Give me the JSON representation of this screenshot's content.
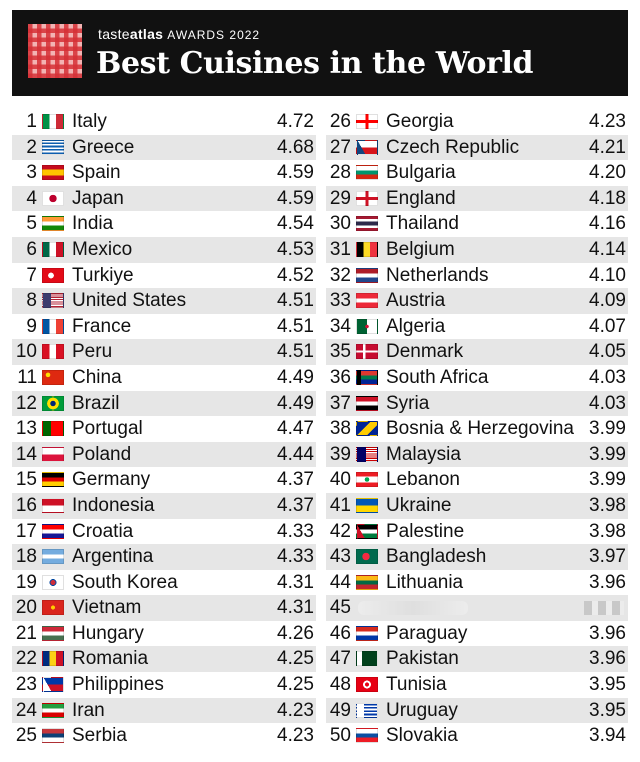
{
  "header": {
    "brand_part1": "taste",
    "brand_part2": "atlas",
    "brand_part3": "AWARDS 2022",
    "title": "Best Cuisines in the World"
  },
  "left_rows": [
    {
      "rank": "1",
      "name": "Italy",
      "score": "4.72",
      "flag": "linear-gradient(90deg,#009246 33%,#fff 33% 66%,#ce2b37 66%)"
    },
    {
      "rank": "2",
      "name": "Greece",
      "score": "4.68",
      "flag": "repeating-linear-gradient(0deg,#0d5eaf 0 1.67px,#fff 1.67px 3.33px)"
    },
    {
      "rank": "3",
      "name": "Spain",
      "score": "4.59",
      "flag": "linear-gradient(0deg,#c60b1e 25%,#ffc400 25% 75%,#c60b1e 75%)"
    },
    {
      "rank": "4",
      "name": "Japan",
      "score": "4.59",
      "flag": "radial-gradient(circle,#bc002d 30%,#fff 32%)"
    },
    {
      "rank": "5",
      "name": "India",
      "score": "4.54",
      "flag": "linear-gradient(0deg,#138808 33%,#fff 33% 66%,#ff9933 66%)"
    },
    {
      "rank": "6",
      "name": "Mexico",
      "score": "4.53",
      "flag": "linear-gradient(90deg,#006847 33%,#fff 33% 66%,#ce1126 66%)"
    },
    {
      "rank": "7",
      "name": "Turkiye",
      "score": "4.52",
      "flag": "radial-gradient(circle at 40% 50%,#fff 20%,#e30a17 22%)"
    },
    {
      "rank": "8",
      "name": "United States",
      "score": "4.51",
      "flag": "linear-gradient(90deg,#3c3b6e 40%,transparent 40%),repeating-linear-gradient(0deg,#b22234 0 1.15px,#fff 1.15px 2.3px)"
    },
    {
      "rank": "9",
      "name": "France",
      "score": "4.51",
      "flag": "linear-gradient(90deg,#0055a4 33%,#fff 33% 66%,#ef4135 66%)"
    },
    {
      "rank": "10",
      "name": "Peru",
      "score": "4.51",
      "flag": "linear-gradient(90deg,#d91023 33%,#fff 33% 66%,#d91023 66%)"
    },
    {
      "rank": "11",
      "name": "China",
      "score": "4.49",
      "flag": "radial-gradient(circle at 25% 30%,#ffde00 12%,#de2910 14%)"
    },
    {
      "rank": "12",
      "name": "Brazil",
      "score": "4.49",
      "flag": "radial-gradient(circle,#002776 22%,#ffdf00 24% 48%,#009c3b 50%)"
    },
    {
      "rank": "13",
      "name": "Portugal",
      "score": "4.47",
      "flag": "linear-gradient(90deg,#006600 40%,#ff0000 40%)"
    },
    {
      "rank": "14",
      "name": "Poland",
      "score": "4.44",
      "flag": "linear-gradient(0deg,#dc143c 50%,#fff 50%)"
    },
    {
      "rank": "15",
      "name": "Germany",
      "score": "4.37",
      "flag": "linear-gradient(0deg,#ffce00 33%,#dd0000 33% 66%,#000 66%)"
    },
    {
      "rank": "16",
      "name": "Indonesia",
      "score": "4.37",
      "flag": "linear-gradient(0deg,#fff 50%,#ce1126 50%)"
    },
    {
      "rank": "17",
      "name": "Croatia",
      "score": "4.33",
      "flag": "linear-gradient(0deg,#171796 33%,#fff 33% 66%,#ff0000 66%)"
    },
    {
      "rank": "18",
      "name": "Argentina",
      "score": "4.33",
      "flag": "linear-gradient(0deg,#74acdf 33%,#fff 33% 66%,#74acdf 66%)"
    },
    {
      "rank": "19",
      "name": "South Korea",
      "score": "4.31",
      "flag": "radial-gradient(circle,#cd2e3a 20%,#0047a0 22% 28%,#fff 30%)"
    },
    {
      "rank": "20",
      "name": "Vietnam",
      "score": "4.31",
      "flag": "radial-gradient(circle,#ffcd00 16%,#da251d 18%)"
    },
    {
      "rank": "21",
      "name": "Hungary",
      "score": "4.26",
      "flag": "linear-gradient(0deg,#477050 33%,#fff 33% 66%,#ce2939 66%)"
    },
    {
      "rank": "22",
      "name": "Romania",
      "score": "4.25",
      "flag": "linear-gradient(90deg,#002b7f 33%,#fcd116 33% 66%,#ce1126 66%)"
    },
    {
      "rank": "23",
      "name": "Philippines",
      "score": "4.25",
      "flag": "linear-gradient(60deg,#fff 30%,transparent 30%),linear-gradient(0deg,#ce1126 50%,#0038a8 50%)"
    },
    {
      "rank": "24",
      "name": "Iran",
      "score": "4.23",
      "flag": "linear-gradient(0deg,#da0000 33%,#fff 33% 66%,#239f40 66%)"
    },
    {
      "rank": "25",
      "name": "Serbia",
      "score": "4.23",
      "flag": "linear-gradient(0deg,#fff 33%,#0c4076 33% 66%,#c6363c 66%)"
    }
  ],
  "right_rows": [
    {
      "rank": "26",
      "name": "Georgia",
      "score": "4.23",
      "flag": "linear-gradient(90deg,transparent 42%,#ff0000 42% 58%,transparent 58%),linear-gradient(0deg,#fff 40%,#ff0000 40% 60%,#fff 60%)"
    },
    {
      "rank": "27",
      "name": "Czech Republic",
      "score": "4.21",
      "flag": "linear-gradient(60deg,#11457e 30%,transparent 30%),linear-gradient(0deg,#d7141a 50%,#fff 50%)"
    },
    {
      "rank": "28",
      "name": "Bulgaria",
      "score": "4.20",
      "flag": "linear-gradient(0deg,#d62612 33%,#00966e 33% 66%,#fff 66%)"
    },
    {
      "rank": "29",
      "name": "England",
      "score": "4.18",
      "flag": "linear-gradient(90deg,transparent 42%,#ce1124 42% 58%,transparent 58%),linear-gradient(0deg,#fff 40%,#ce1124 40% 60%,#fff 60%)"
    },
    {
      "rank": "30",
      "name": "Thailand",
      "score": "4.16",
      "flag": "linear-gradient(0deg,#a51931 16%,#fff 16% 33%,#2d2a4a 33% 66%,#fff 66% 83%,#a51931 83%)"
    },
    {
      "rank": "31",
      "name": "Belgium",
      "score": "4.14",
      "flag": "linear-gradient(90deg,#000 33%,#fdda24 33% 66%,#ef3340 66%)"
    },
    {
      "rank": "32",
      "name": "Netherlands",
      "score": "4.10",
      "flag": "linear-gradient(0deg,#21468b 33%,#fff 33% 66%,#ae1c28 66%)"
    },
    {
      "rank": "33",
      "name": "Austria",
      "score": "4.09",
      "flag": "linear-gradient(0deg,#ed2939 33%,#fff 33% 66%,#ed2939 66%)"
    },
    {
      "rank": "34",
      "name": "Algeria",
      "score": "4.07",
      "flag": "radial-gradient(circle,#d21034 14%,transparent 16%),linear-gradient(90deg,#006233 50%,#fff 50%)"
    },
    {
      "rank": "35",
      "name": "Denmark",
      "score": "4.05",
      "flag": "linear-gradient(90deg,transparent 30%,#fff 30% 42%,transparent 42%),linear-gradient(0deg,#c60c30 42%,#fff 42% 58%,#c60c30 58%)"
    },
    {
      "rank": "36",
      "name": "South Africa",
      "score": "4.03",
      "flag": "linear-gradient(90deg,#000 20%,transparent 20%),linear-gradient(0deg,#002395 33%,#007a4d 33% 66%,#de3831 66%)"
    },
    {
      "rank": "37",
      "name": "Syria",
      "score": "4.03",
      "flag": "linear-gradient(0deg,#000 33%,#fff 33% 66%,#ce1126 66%)"
    },
    {
      "rank": "38",
      "name": "Bosnia & Herzegovina",
      "score": "3.99",
      "flag": "linear-gradient(135deg,#002395 40%,#fecb00 40% 70%,#002395 70%)"
    },
    {
      "rank": "39",
      "name": "Malaysia",
      "score": "3.99",
      "flag": "linear-gradient(90deg,#010066 45%,transparent 45%),repeating-linear-gradient(0deg,#cc0001 0 1.1px,#fff 1.1px 2.2px)"
    },
    {
      "rank": "40",
      "name": "Lebanon",
      "score": "3.99",
      "flag": "radial-gradient(circle,#00a651 18%,transparent 20%),linear-gradient(0deg,#ed1c24 25%,#fff 25% 75%,#ed1c24 75%)"
    },
    {
      "rank": "41",
      "name": "Ukraine",
      "score": "3.98",
      "flag": "linear-gradient(0deg,#ffd700 50%,#0057b7 50%)"
    },
    {
      "rank": "42",
      "name": "Palestine",
      "score": "3.98",
      "flag": "linear-gradient(60deg,#ce1126 28%,transparent 28%),linear-gradient(0deg,#007a3d 33%,#fff 33% 66%,#000 66%)"
    },
    {
      "rank": "43",
      "name": "Bangladesh",
      "score": "3.97",
      "flag": "radial-gradient(circle at 45% 50%,#f42a41 28%,#006a4e 30%)"
    },
    {
      "rank": "44",
      "name": "Lithuania",
      "score": "3.96",
      "flag": "linear-gradient(0deg,#c1272d 33%,#006a44 33% 66%,#fdb913 66%)"
    },
    {
      "rank": "45",
      "name": "",
      "score": "",
      "flag": "",
      "redacted": true
    },
    {
      "rank": "46",
      "name": "Paraguay",
      "score": "3.96",
      "flag": "linear-gradient(0deg,#0038a8 33%,#fff 33% 66%,#d52b1e 66%)"
    },
    {
      "rank": "47",
      "name": "Pakistan",
      "score": "3.96",
      "flag": "linear-gradient(90deg,#fff 25%,#01411c 25%)"
    },
    {
      "rank": "48",
      "name": "Tunisia",
      "score": "3.95",
      "flag": "radial-gradient(circle,#e70013 16%,#fff 18% 32%,#e70013 34%)"
    },
    {
      "rank": "49",
      "name": "Uruguay",
      "score": "3.95",
      "flag": "linear-gradient(90deg,#fff 35%,transparent 35%),repeating-linear-gradient(0deg,#fff 0 1.67px,#0038a8 1.67px 3.33px)"
    },
    {
      "rank": "50",
      "name": "Slovakia",
      "score": "3.94",
      "flag": "linear-gradient(0deg,#ee1c25 33%,#0b4ea2 33% 66%,#fff 66%)"
    }
  ]
}
